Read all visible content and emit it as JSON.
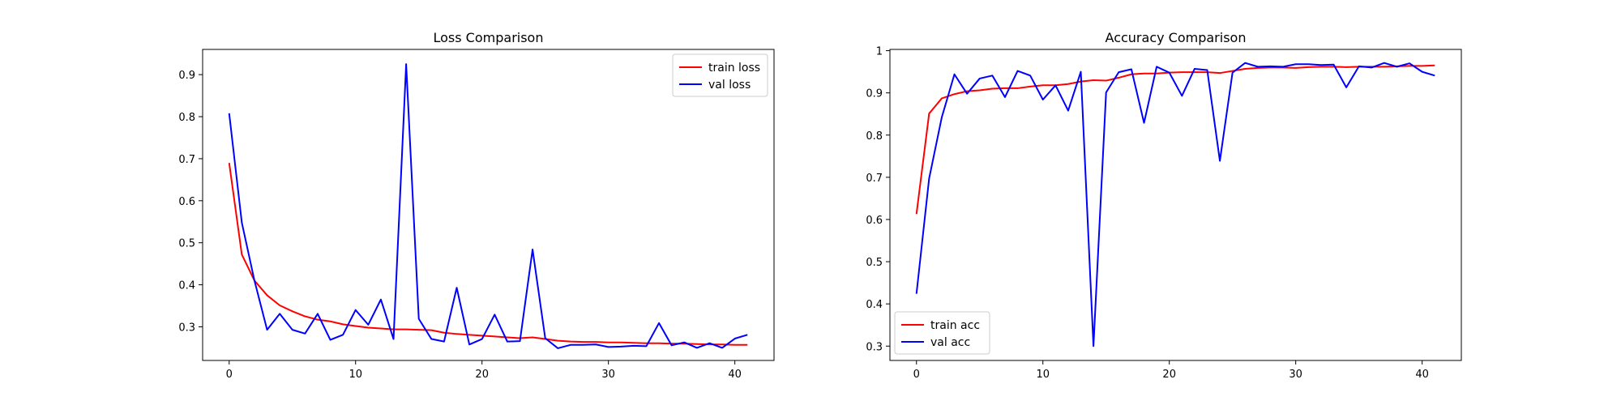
{
  "chart_data": [
    {
      "type": "line",
      "title": "Loss Comparison",
      "xlabel": "",
      "ylabel": "",
      "xlim": [
        -2.1,
        43.1
      ],
      "ylim": [
        0.22,
        0.96
      ],
      "xticks": [
        0,
        10,
        20,
        30,
        40
      ],
      "yticks": [
        0.3,
        0.4,
        0.5,
        0.6,
        0.7,
        0.8,
        0.9
      ],
      "grid": false,
      "legend_position": "top-right",
      "x": [
        0,
        1,
        2,
        3,
        4,
        5,
        6,
        7,
        8,
        9,
        10,
        11,
        12,
        13,
        14,
        15,
        16,
        17,
        18,
        19,
        20,
        21,
        22,
        23,
        24,
        25,
        26,
        27,
        28,
        29,
        30,
        31,
        32,
        33,
        34,
        35,
        36,
        37,
        38,
        39,
        40,
        41
      ],
      "series": [
        {
          "name": "train loss",
          "color": "#ff0000",
          "values": [
            0.69,
            0.472,
            0.41,
            0.375,
            0.351,
            0.337,
            0.325,
            0.317,
            0.313,
            0.306,
            0.302,
            0.298,
            0.296,
            0.294,
            0.294,
            0.293,
            0.292,
            0.286,
            0.283,
            0.281,
            0.279,
            0.277,
            0.275,
            0.273,
            0.275,
            0.271,
            0.267,
            0.265,
            0.264,
            0.264,
            0.263,
            0.263,
            0.262,
            0.261,
            0.261,
            0.26,
            0.26,
            0.259,
            0.258,
            0.258,
            0.257,
            0.257
          ]
        },
        {
          "name": "val loss",
          "color": "#0000ff",
          "values": [
            0.808,
            0.548,
            0.41,
            0.293,
            0.331,
            0.293,
            0.284,
            0.331,
            0.269,
            0.281,
            0.34,
            0.305,
            0.365,
            0.271,
            0.925,
            0.319,
            0.271,
            0.265,
            0.393,
            0.258,
            0.271,
            0.329,
            0.265,
            0.266,
            0.484,
            0.273,
            0.249,
            0.257,
            0.257,
            0.258,
            0.252,
            0.253,
            0.255,
            0.254,
            0.309,
            0.256,
            0.263,
            0.25,
            0.261,
            0.25,
            0.272,
            0.281
          ]
        }
      ]
    },
    {
      "type": "line",
      "title": "Accuracy Comparison",
      "xlabel": "",
      "ylabel": "",
      "xlim": [
        -2.1,
        43.1
      ],
      "ylim": [
        0.266,
        1.003
      ],
      "xticks": [
        0,
        10,
        20,
        30,
        40
      ],
      "yticks": [
        0.3,
        0.4,
        0.5,
        0.6,
        0.7,
        0.8,
        0.9,
        1.0
      ],
      "grid": false,
      "legend_position": "bottom-left",
      "x": [
        0,
        1,
        2,
        3,
        4,
        5,
        6,
        7,
        8,
        9,
        10,
        11,
        12,
        13,
        14,
        15,
        16,
        17,
        18,
        19,
        20,
        21,
        22,
        23,
        24,
        25,
        26,
        27,
        28,
        29,
        30,
        31,
        32,
        33,
        34,
        35,
        36,
        37,
        38,
        39,
        40,
        41
      ],
      "series": [
        {
          "name": "train acc",
          "color": "#ff0000",
          "values": [
            0.613,
            0.851,
            0.887,
            0.897,
            0.904,
            0.906,
            0.91,
            0.911,
            0.911,
            0.915,
            0.918,
            0.918,
            0.921,
            0.927,
            0.93,
            0.929,
            0.936,
            0.944,
            0.946,
            0.946,
            0.948,
            0.949,
            0.949,
            0.949,
            0.947,
            0.952,
            0.957,
            0.959,
            0.96,
            0.96,
            0.959,
            0.961,
            0.962,
            0.962,
            0.961,
            0.962,
            0.962,
            0.962,
            0.963,
            0.964,
            0.964,
            0.965
          ]
        },
        {
          "name": "val acc",
          "color": "#0000ff",
          "values": [
            0.424,
            0.697,
            0.842,
            0.944,
            0.898,
            0.934,
            0.941,
            0.89,
            0.952,
            0.941,
            0.884,
            0.918,
            0.858,
            0.95,
            0.3,
            0.901,
            0.949,
            0.956,
            0.829,
            0.962,
            0.948,
            0.893,
            0.957,
            0.954,
            0.739,
            0.948,
            0.971,
            0.962,
            0.963,
            0.962,
            0.968,
            0.968,
            0.966,
            0.967,
            0.913,
            0.963,
            0.96,
            0.971,
            0.962,
            0.97,
            0.95,
            0.941
          ]
        }
      ]
    }
  ]
}
